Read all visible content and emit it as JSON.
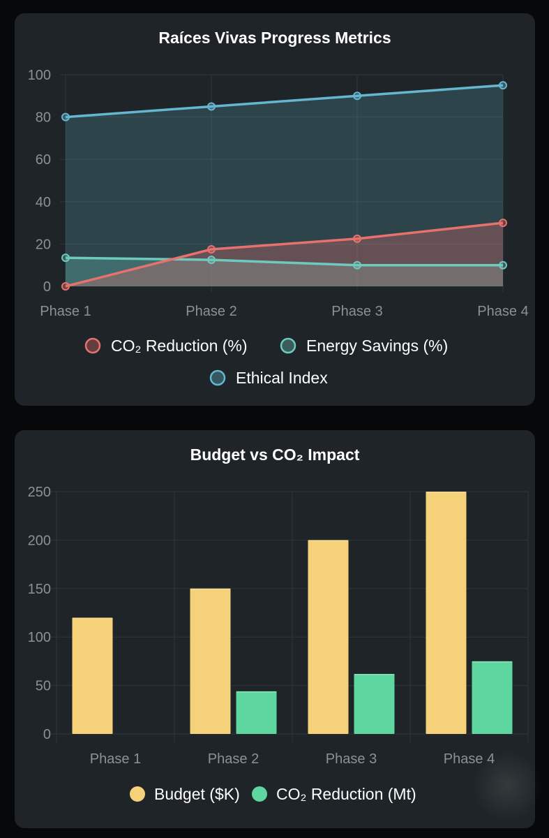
{
  "colors": {
    "co2_percent": "#e8716e",
    "energy_savings": "#6fc9bd",
    "ethical_index": "#65b6cf",
    "budget": "#f5d27a",
    "co2_mt": "#5ed6a0",
    "grid": "#2e373b",
    "tick_text": "#8a9296",
    "legend_text": "#ffffff"
  },
  "chart_data": [
    {
      "type": "area",
      "title": "Raíces Vivas Progress Metrics",
      "categories": [
        "Phase 1",
        "Phase 2",
        "Phase 3",
        "Phase 4"
      ],
      "ylim": [
        0,
        100
      ],
      "yticks": [
        "0",
        "20",
        "40",
        "60",
        "80",
        "100"
      ],
      "grid": true,
      "legend_position": "bottom",
      "series": [
        {
          "name": "CO₂ Reduction (%)",
          "values": [
            0,
            17.5,
            22.5,
            30
          ],
          "color_key": "co2_percent"
        },
        {
          "name": "Energy Savings (%)",
          "values": [
            13.5,
            12.5,
            10,
            10
          ],
          "color_key": "energy_savings"
        },
        {
          "name": "Ethical Index",
          "values": [
            80,
            85,
            90,
            95
          ],
          "color_key": "ethical_index"
        }
      ]
    },
    {
      "type": "bar",
      "title": "Budget vs CO₂ Impact",
      "categories": [
        "Phase 1",
        "Phase 2",
        "Phase 3",
        "Phase 4"
      ],
      "ylim": [
        0,
        250
      ],
      "yticks": [
        "0",
        "50",
        "100",
        "150",
        "200",
        "250"
      ],
      "grid": true,
      "legend_position": "bottom",
      "series": [
        {
          "name": "Budget ($K)",
          "values": [
            120,
            150,
            200,
            250
          ],
          "color_key": "budget"
        },
        {
          "name": "CO₂ Reduction (Mt)",
          "values": [
            0,
            44,
            62,
            75
          ],
          "color_key": "co2_mt"
        }
      ]
    }
  ]
}
